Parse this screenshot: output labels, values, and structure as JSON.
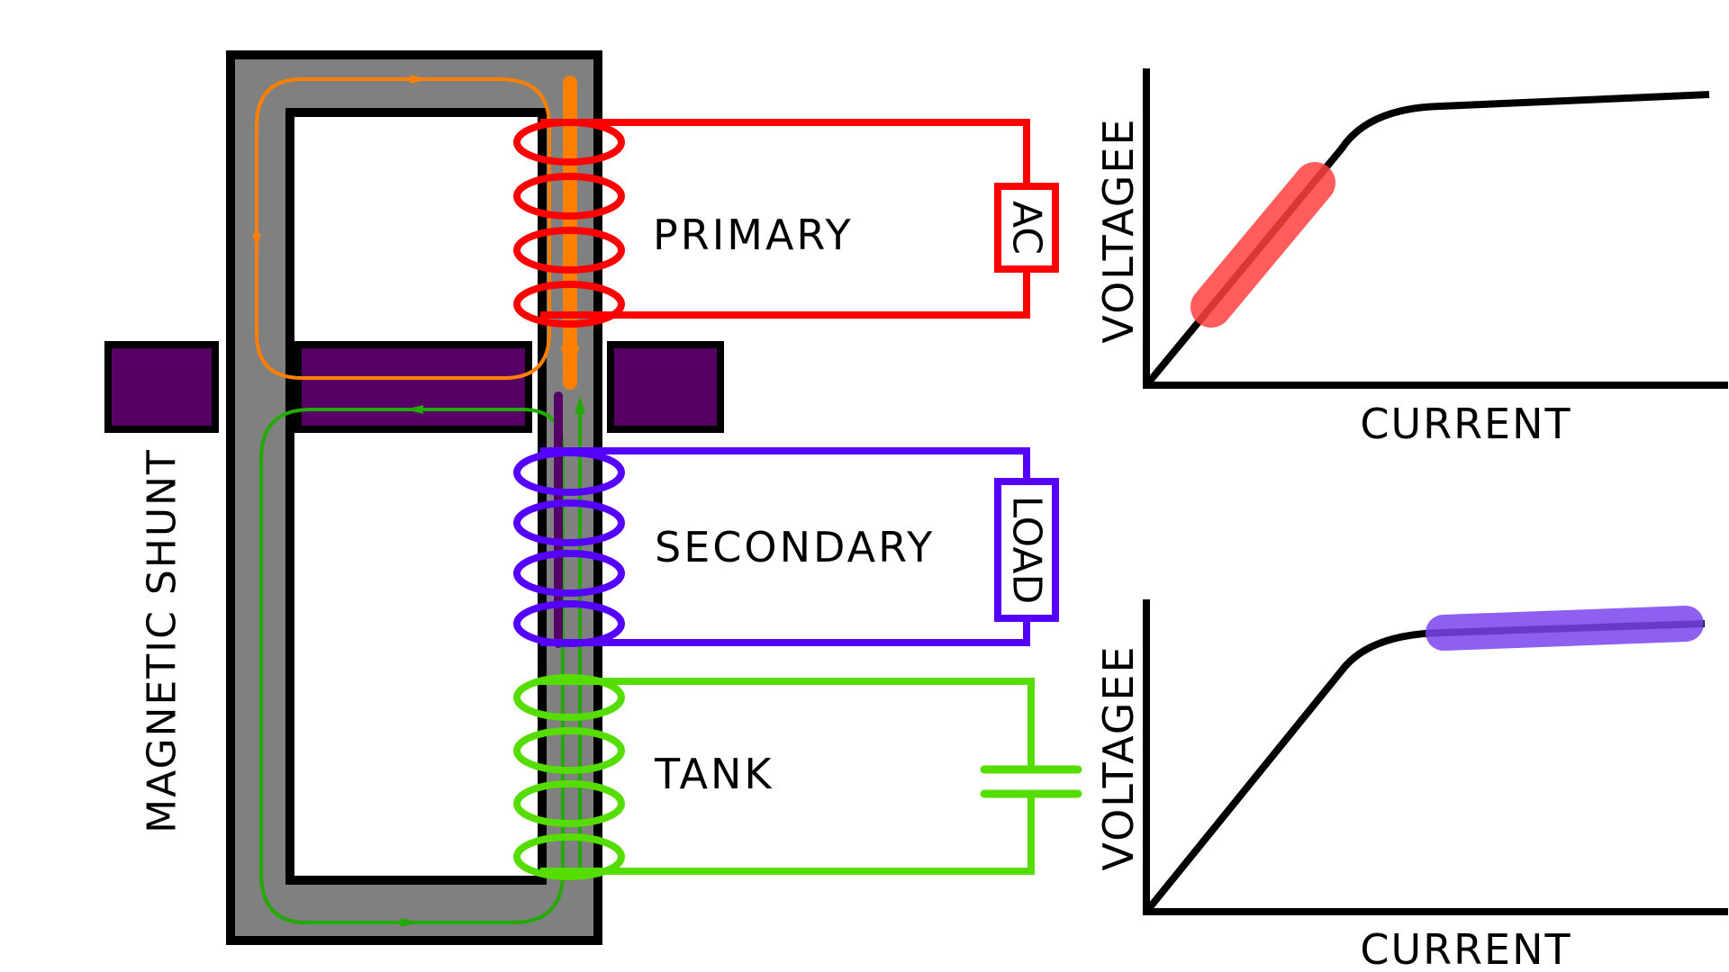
{
  "labels": {
    "magnetic_shunt": "MAGNETIC SHUNT",
    "primary": "PRIMARY",
    "secondary": "SECONDARY",
    "tank": "TANK",
    "ac": "AC",
    "load": "LOAD"
  },
  "charts": [
    {
      "xlabel": "CURRENT",
      "ylabel": "VOLTAGEE",
      "highlight": "linear region"
    },
    {
      "xlabel": "CURRENT",
      "ylabel": "VOLTAGEE",
      "highlight": "saturation region"
    }
  ],
  "colors": {
    "core": "#808080",
    "shunt": "#560066",
    "primary": "#ff0000",
    "secondary": "#5500ff",
    "tank": "#55dd00",
    "flux_primary": "#ff7f00",
    "flux_secondary": "#22aa00",
    "highlight_linear": "#ff4040",
    "highlight_saturation": "#7a44f0"
  }
}
